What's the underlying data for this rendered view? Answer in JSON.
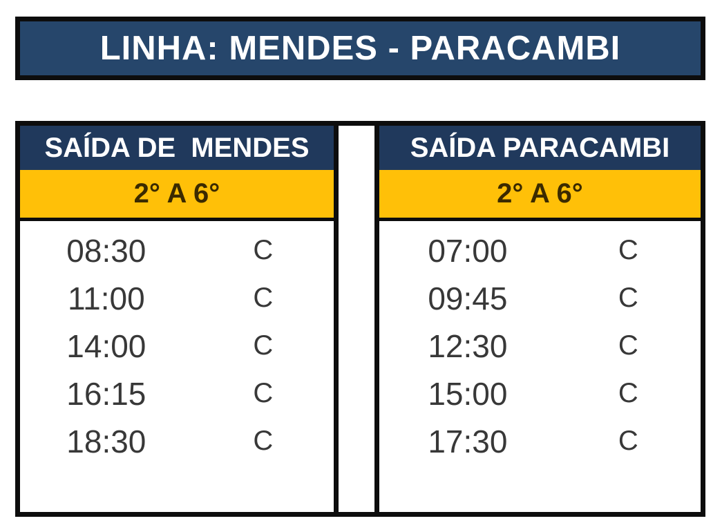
{
  "title_bar": {
    "text": "LINHA: MENDES - PARACAMBI"
  },
  "colors": {
    "title_bg": "#26466B",
    "header_bg": "#20395C",
    "header_text": "#FFFFFF",
    "band_bg": "#FFC008",
    "band_text": "#3B2A00",
    "time_text": "#383838",
    "border_color": "#0D0D0D"
  },
  "tables": [
    {
      "header": "SAÍDA DE  MENDES",
      "period": "2° A 6°",
      "rows": [
        {
          "time": "08:30",
          "code": "C"
        },
        {
          "time": "11:00",
          "code": "C"
        },
        {
          "time": "14:00",
          "code": "C"
        },
        {
          "time": "16:15",
          "code": "C"
        },
        {
          "time": "18:30",
          "code": "C"
        }
      ]
    },
    {
      "header": "SAÍDA PARACAMBI",
      "period": "2° A 6°",
      "rows": [
        {
          "time": "07:00",
          "code": "C"
        },
        {
          "time": "09:45",
          "code": "C"
        },
        {
          "time": "12:30",
          "code": "C"
        },
        {
          "time": "15:00",
          "code": "C"
        },
        {
          "time": "17:30",
          "code": "C"
        }
      ]
    }
  ]
}
